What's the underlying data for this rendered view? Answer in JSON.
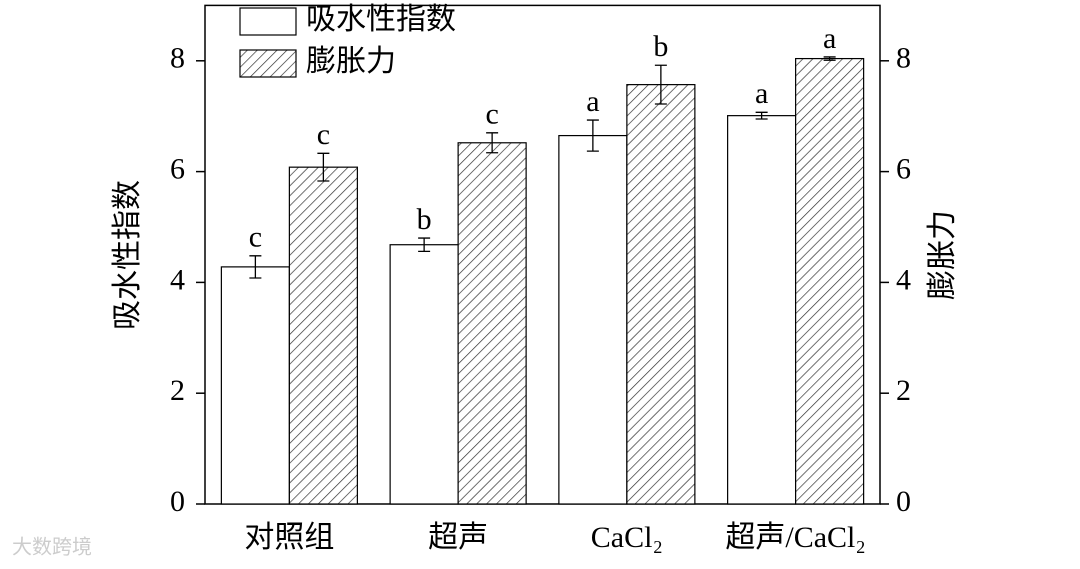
{
  "chart_data": {
    "type": "bar",
    "categories": [
      "对照组",
      "超声",
      "CaCl₂",
      "超声/CaCl₂"
    ],
    "series": [
      {
        "name": "吸水性指数",
        "color": "#ffffff",
        "values": [
          4.28,
          4.68,
          6.65,
          7.01
        ],
        "errors": [
          0.2,
          0.12,
          0.28,
          0.06
        ],
        "letters": [
          "c",
          "b",
          "a",
          "a"
        ]
      },
      {
        "name": "膨胀力",
        "color": "hatch",
        "axis": "y2",
        "values": [
          6.08,
          6.52,
          7.57,
          8.04
        ],
        "errors": [
          0.25,
          0.18,
          0.35,
          0.03
        ],
        "letters": [
          "c",
          "c",
          "b",
          "a"
        ]
      }
    ],
    "ylabel": "吸水性指数",
    "y2label": "膨胀力",
    "ylim": [
      0,
      9
    ],
    "yticks": [
      0,
      2,
      4,
      6,
      8
    ],
    "y2lim": [
      0,
      9
    ],
    "y2ticks": [
      0,
      2,
      4,
      6,
      8
    ],
    "legend": "upper left",
    "watermark": "大数跨境"
  }
}
